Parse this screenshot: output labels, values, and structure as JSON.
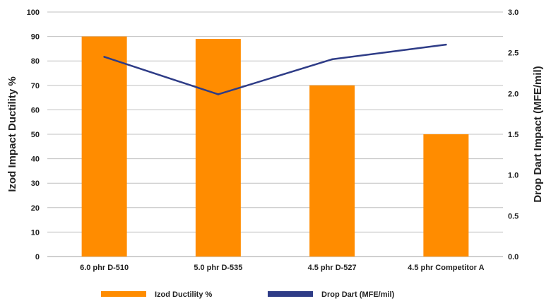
{
  "chart_data": {
    "type": "bar",
    "categories": [
      "6.0 phr D-510",
      "5.0 phr D-535",
      "4.5 phr D-527",
      "4.5 phr  Competitor A"
    ],
    "series": [
      {
        "name": "Izod Ductility %",
        "type": "bar",
        "axis": "left",
        "values": [
          90,
          89,
          70,
          50
        ]
      },
      {
        "name": "Drop Dart (MFE/mil)",
        "type": "line",
        "axis": "right",
        "values": [
          2.45,
          1.99,
          2.42,
          2.6
        ]
      }
    ],
    "title": "",
    "ylabel": "Izod Impact Ductility %",
    "y2label": "Drop Dart Impact (MFE/mil)",
    "ylim": [
      0,
      100
    ],
    "y2lim": [
      0,
      3.0
    ],
    "yticks": [
      "0",
      "10",
      "20",
      "30",
      "40",
      "50",
      "60",
      "70",
      "80",
      "90",
      "100"
    ],
    "y2ticks": [
      "0.0",
      "0.5",
      "1.0",
      "1.5",
      "2.0",
      "2.5",
      "3.0"
    ],
    "grid": true,
    "legend_position": "bottom",
    "colors": {
      "bar": "#FF8C00",
      "line": "#2E3C87",
      "grid": "#C0C0C0"
    }
  }
}
